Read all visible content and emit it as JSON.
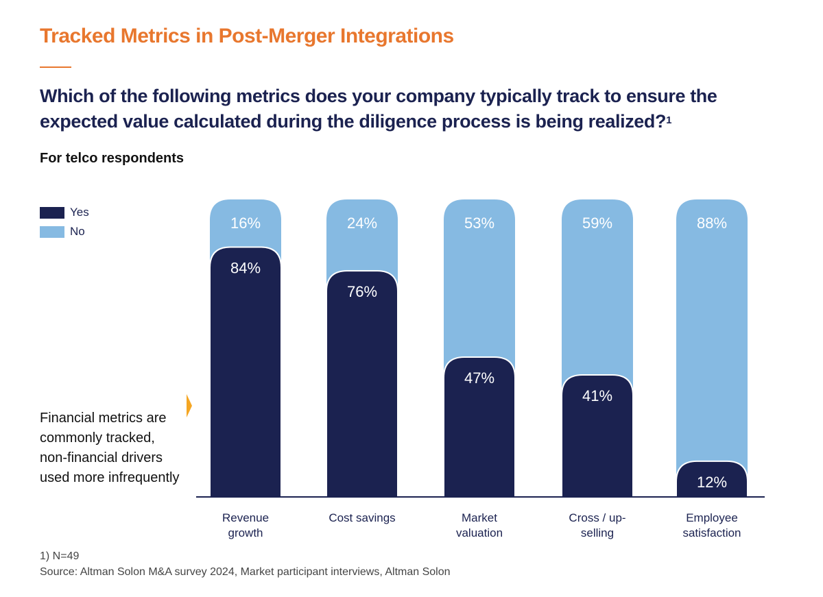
{
  "header": {
    "title": "Tracked Metrics in Post-Merger Integrations",
    "question": "Which of the following metrics does your company typically track to ensure the expected value calculated during the diligence process is being realized?",
    "question_footnote_marker": "1",
    "subtitle": "For telco respondents"
  },
  "callout": {
    "text": "Financial metrics are commonly tracked, non-financial drivers used more infrequently"
  },
  "footnotes": {
    "note1": "1) N=49",
    "source": "Source: Altman Solon M&A survey 2024, Market participant interviews, Altman Solon"
  },
  "colors": {
    "yes": "#1b2250",
    "no": "#86bae2",
    "title": "#e8772e",
    "accent_arrow": "#f5a623"
  },
  "chart_data": {
    "type": "bar",
    "stacked": true,
    "title": "Which of the following metrics does your company typically track to ensure the expected value calculated during the diligence process is being realized?",
    "xlabel": "",
    "ylabel": "",
    "ylim": [
      0,
      100
    ],
    "grid": false,
    "legend_position": "top-left",
    "categories": [
      [
        "Revenue",
        "growth"
      ],
      [
        "Cost savings"
      ],
      [
        "Market",
        "valuation"
      ],
      [
        "Cross / up-",
        "selling"
      ],
      [
        "Employee",
        "satisfaction"
      ]
    ],
    "series": [
      {
        "name": "Yes",
        "color": "#1b2250",
        "values": [
          84,
          76,
          47,
          41,
          12
        ]
      },
      {
        "name": "No",
        "color": "#86bae2",
        "values": [
          16,
          24,
          53,
          59,
          88
        ]
      }
    ],
    "value_suffix": "%"
  }
}
